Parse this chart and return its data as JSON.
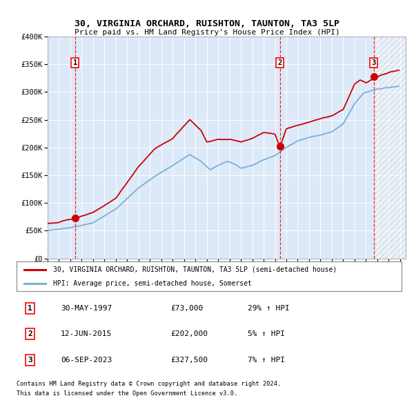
{
  "title": "30, VIRGINIA ORCHARD, RUISHTON, TAUNTON, TA3 5LP",
  "subtitle": "Price paid vs. HM Land Registry's House Price Index (HPI)",
  "ylim": [
    0,
    400000
  ],
  "yticks": [
    0,
    50000,
    100000,
    150000,
    200000,
    250000,
    300000,
    350000,
    400000
  ],
  "ytick_labels": [
    "£0",
    "£50K",
    "£100K",
    "£150K",
    "£200K",
    "£250K",
    "£300K",
    "£350K",
    "£400K"
  ],
  "xlim_start": 1995.0,
  "xlim_end": 2026.5,
  "xtick_years": [
    1995,
    1996,
    1997,
    1998,
    1999,
    2000,
    2001,
    2002,
    2003,
    2004,
    2005,
    2006,
    2007,
    2008,
    2009,
    2010,
    2011,
    2012,
    2013,
    2014,
    2015,
    2016,
    2017,
    2018,
    2019,
    2020,
    2021,
    2022,
    2023,
    2024,
    2025,
    2026
  ],
  "bg_color": "#dce9f8",
  "hatch_start": 2023.7,
  "sale_color": "#cc0000",
  "hpi_color": "#7bafd4",
  "sale_label": "30, VIRGINIA ORCHARD, RUISHTON, TAUNTON, TA3 5LP (semi-detached house)",
  "hpi_label": "HPI: Average price, semi-detached house, Somerset",
  "transactions": [
    {
      "num": 1,
      "date_str": "30-MAY-1997",
      "price": 73000,
      "year": 1997.41,
      "pct": "29%",
      "dir": "↑"
    },
    {
      "num": 2,
      "date_str": "12-JUN-2015",
      "price": 202000,
      "year": 2015.44,
      "pct": "5%",
      "dir": "↑"
    },
    {
      "num": 3,
      "date_str": "06-SEP-2023",
      "price": 327500,
      "year": 2023.68,
      "pct": "7%",
      "dir": "↑"
    }
  ],
  "footer1": "Contains HM Land Registry data © Crown copyright and database right 2024.",
  "footer2": "This data is licensed under the Open Government Licence v3.0."
}
